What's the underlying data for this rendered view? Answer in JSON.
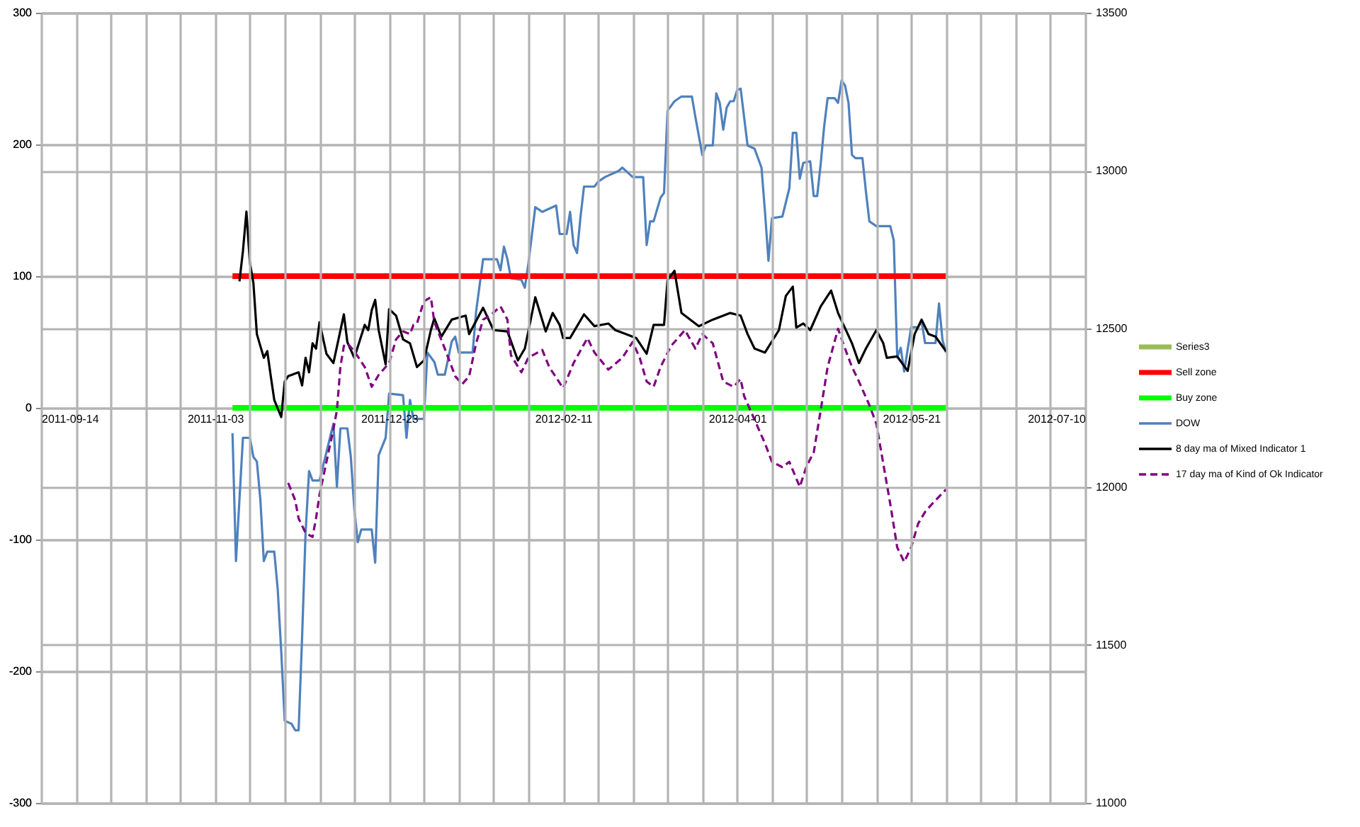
{
  "chart_data": {
    "type": "line",
    "xlim": [
      "2011-09-14",
      "2012-07-10"
    ],
    "xticks": [
      "2011-09-14",
      {
        "value": "2011-09-24",
        "label": null
      },
      {
        "value": "2011-10-04",
        "label": null
      },
      {
        "value": "2011-10-14",
        "label": null
      },
      {
        "value": "2011-10-24",
        "label": null
      },
      "2011-11-03",
      {
        "value": "2011-11-13",
        "label": null
      },
      {
        "value": "2011-11-23",
        "label": null
      },
      {
        "value": "2011-12-03",
        "label": null
      },
      {
        "value": "2011-12-13",
        "label": null
      },
      "2011-12-23",
      {
        "value": "2012-01-02",
        "label": null
      },
      {
        "value": "2012-01-12",
        "label": null
      },
      {
        "value": "2012-01-22",
        "label": null
      },
      {
        "value": "2012-02-01",
        "label": null
      },
      "2012-02-11",
      {
        "value": "2012-02-21",
        "label": null
      },
      {
        "value": "2012-03-02",
        "label": null
      },
      {
        "value": "2012-03-12",
        "label": null
      },
      {
        "value": "2012-03-22",
        "label": null
      },
      "2012-04-01",
      {
        "value": "2012-04-11",
        "label": null
      },
      {
        "value": "2012-04-21",
        "label": null
      },
      {
        "value": "2012-05-01",
        "label": null
      },
      {
        "value": "2012-05-11",
        "label": null
      },
      "2012-05-21",
      {
        "value": "2012-05-31",
        "label": null
      },
      {
        "value": "2012-06-10",
        "label": null
      },
      {
        "value": "2012-06-20",
        "label": null
      },
      {
        "value": "2012-06-30",
        "label": null
      },
      "2012-07-10"
    ],
    "ylim": [
      -300,
      300
    ],
    "yticks": [
      -300,
      -200,
      -100,
      0,
      100,
      200,
      300
    ],
    "y2lim": [
      11000,
      13500
    ],
    "y2ticks": [
      11000,
      11500,
      12000,
      12500,
      13000,
      13500
    ],
    "grid": true,
    "legend": "right",
    "series": [
      {
        "name": "Series3",
        "color": "#9bbb59"
      },
      {
        "name": "Sell zone",
        "color": "#ff0000",
        "x": [
          "2011-11-08",
          "2012-05-31"
        ],
        "values": [
          100,
          100
        ]
      },
      {
        "name": "Buy zone",
        "color": "#00ff00",
        "x": [
          "2011-11-08",
          "2012-05-31"
        ],
        "values": [
          0,
          0
        ]
      },
      {
        "name": "DOW",
        "color": "#4f81bd",
        "axis": "y2",
        "x": [
          "2011-11-08",
          "2011-11-09",
          "2011-11-10",
          "2011-11-11",
          "2011-11-13",
          "2011-11-14",
          "2011-11-15",
          "2011-11-16",
          "2011-11-17",
          "2011-11-18",
          "2011-11-20",
          "2011-11-21",
          "2011-11-22",
          "2011-11-23",
          "2011-11-25",
          "2011-11-26",
          "2011-11-27",
          "2011-11-28",
          "2011-11-29",
          "2011-11-30",
          "2011-12-01",
          "2011-12-03",
          "2011-12-05",
          "2011-12-07",
          "2011-12-08",
          "2011-12-09",
          "2011-12-11",
          "2011-12-12",
          "2011-12-13",
          "2011-12-14",
          "2011-12-15",
          "2011-12-18",
          "2011-12-19",
          "2011-12-20",
          "2011-12-22",
          "2011-12-23",
          "2011-12-27",
          "2011-12-28",
          "2011-12-29",
          "2011-12-30",
          "2012-01-02",
          "2012-01-03",
          "2012-01-05",
          "2012-01-06",
          "2012-01-08",
          "2012-01-10",
          "2012-01-11",
          "2012-01-12",
          "2012-01-16",
          "2012-01-17",
          "2012-01-19",
          "2012-01-23",
          "2012-01-24",
          "2012-01-25",
          "2012-01-26",
          "2012-01-27",
          "2012-01-30",
          "2012-01-31",
          "2012-02-01",
          "2012-02-03",
          "2012-02-05",
          "2012-02-09",
          "2012-02-10",
          "2012-02-12",
          "2012-02-13",
          "2012-02-14",
          "2012-02-15",
          "2012-02-16",
          "2012-02-17",
          "2012-02-20",
          "2012-02-21",
          "2012-02-23",
          "2012-02-27",
          "2012-02-28",
          "2012-03-01",
          "2012-03-02",
          "2012-03-05",
          "2012-03-06",
          "2012-03-07",
          "2012-03-08",
          "2012-03-10",
          "2012-03-11",
          "2012-03-12",
          "2012-03-14",
          "2012-03-16",
          "2012-03-19",
          "2012-03-20",
          "2012-03-22",
          "2012-03-23",
          "2012-03-25",
          "2012-03-26",
          "2012-03-27",
          "2012-03-28",
          "2012-03-29",
          "2012-03-30",
          "2012-03-31",
          "2012-04-01",
          "2012-04-02",
          "2012-04-04",
          "2012-04-06",
          "2012-04-08",
          "2012-04-09",
          "2012-04-10",
          "2012-04-11",
          "2012-04-14",
          "2012-04-16",
          "2012-04-17",
          "2012-04-18",
          "2012-04-19",
          "2012-04-20",
          "2012-04-22",
          "2012-04-23",
          "2012-04-24",
          "2012-04-25",
          "2012-04-26",
          "2012-04-27",
          "2012-04-29",
          "2012-04-30",
          "2012-05-01",
          "2012-05-02",
          "2012-05-03",
          "2012-05-04",
          "2012-05-05",
          "2012-05-07",
          "2012-05-08",
          "2012-05-09",
          "2012-05-11",
          "2012-05-15",
          "2012-05-16",
          "2012-05-17",
          "2012-05-18",
          "2012-05-19",
          "2012-05-21",
          "2012-05-23",
          "2012-05-24",
          "2012-05-25",
          "2012-05-28",
          "2012-05-29",
          "2012-05-30",
          "2012-05-31"
        ],
        "values": [
          12170,
          11765,
          11960,
          12155,
          12155,
          12095,
          12080,
          11960,
          11765,
          11795,
          11795,
          11675,
          11480,
          11260,
          11250,
          11230,
          11230,
          11525,
          11855,
          12050,
          12020,
          12020,
          12110,
          12200,
          12000,
          12185,
          12185,
          12095,
          11930,
          11825,
          11865,
          11865,
          11760,
          12100,
          12155,
          12295,
          12290,
          12155,
          12275,
          12215,
          12215,
          12425,
          12395,
          12355,
          12355,
          12460,
          12475,
          12425,
          12425,
          12555,
          12720,
          12720,
          12685,
          12760,
          12720,
          12660,
          12655,
          12630,
          12705,
          12885,
          12870,
          12890,
          12800,
          12800,
          12870,
          12765,
          12740,
          12855,
          12950,
          12950,
          12965,
          12980,
          13000,
          13010,
          12990,
          12980,
          12980,
          12765,
          12840,
          12840,
          12915,
          12930,
          13190,
          13220,
          13235,
          13235,
          13170,
          13050,
          13080,
          13080,
          13245,
          13215,
          13130,
          13200,
          13220,
          13220,
          13255,
          13260,
          13080,
          13070,
          13010,
          12870,
          12715,
          12850,
          12855,
          12945,
          13120,
          13120,
          12975,
          13025,
          13030,
          12920,
          12920,
          13020,
          13140,
          13230,
          13230,
          13215,
          13285,
          13270,
          13215,
          13050,
          13040,
          13040,
          12935,
          12840,
          12825,
          12825,
          12780,
          12410,
          12440,
          12365,
          12505,
          12505,
          12525,
          12455,
          12455,
          12580,
          12465,
          12425
        ]
      },
      {
        "name": "8 day ma of Mixed Indicator 1",
        "color": "#000000",
        "x": [
          "2011-11-10",
          "2011-11-11",
          "2011-11-12",
          "2011-11-13",
          "2011-11-14",
          "2011-11-15",
          "2011-11-16",
          "2011-11-17",
          "2011-11-18",
          "2011-11-19",
          "2011-11-20",
          "2011-11-22",
          "2011-11-23",
          "2011-11-24",
          "2011-11-27",
          "2011-11-28",
          "2011-11-29",
          "2011-11-30",
          "2011-12-01",
          "2011-12-02",
          "2011-12-03",
          "2011-12-05",
          "2011-12-07",
          "2011-12-10",
          "2011-12-11",
          "2011-12-13",
          "2011-12-16",
          "2011-12-17",
          "2011-12-18",
          "2011-12-19",
          "2011-12-20",
          "2011-12-22",
          "2011-12-23",
          "2011-12-25",
          "2011-12-27",
          "2011-12-29",
          "2011-12-31",
          "2012-01-02",
          "2012-01-04",
          "2012-01-05",
          "2012-01-07",
          "2012-01-10",
          "2012-01-14",
          "2012-01-15",
          "2012-01-19",
          "2012-01-22",
          "2012-01-26",
          "2012-01-29",
          "2012-01-31",
          "2012-02-03",
          "2012-02-06",
          "2012-02-08",
          "2012-02-10",
          "2012-02-11",
          "2012-02-13",
          "2012-02-17",
          "2012-02-20",
          "2012-02-24",
          "2012-02-26",
          "2012-02-29",
          "2012-03-03",
          "2012-03-06",
          "2012-03-08",
          "2012-03-11",
          "2012-03-12",
          "2012-03-14",
          "2012-03-16",
          "2012-03-18",
          "2012-03-21",
          "2012-03-25",
          "2012-03-30",
          "2012-04-02",
          "2012-04-04",
          "2012-04-06",
          "2012-04-09",
          "2012-04-13",
          "2012-04-15",
          "2012-04-17",
          "2012-04-18",
          "2012-04-20",
          "2012-04-22",
          "2012-04-25",
          "2012-04-28",
          "2012-04-30",
          "2012-05-04",
          "2012-05-06",
          "2012-05-08",
          "2012-05-11",
          "2012-05-13",
          "2012-05-14",
          "2012-05-17",
          "2012-05-20",
          "2012-05-22",
          "2012-05-24",
          "2012-05-26",
          "2012-05-28",
          "2012-05-31"
        ],
        "values": [
          96,
          119,
          149,
          110,
          95,
          56,
          47,
          38,
          43,
          24,
          6,
          -7,
          20,
          24,
          27,
          17,
          38,
          27,
          49,
          45,
          65,
          41,
          34,
          71,
          50,
          38,
          63,
          59,
          74,
          82,
          59,
          33,
          75,
          70,
          52,
          49,
          31,
          36,
          59,
          68,
          54,
          67,
          70,
          56,
          76,
          59,
          58,
          36,
          45,
          84,
          58,
          72,
          63,
          53,
          53,
          71,
          62,
          64,
          59,
          56,
          53,
          41,
          63,
          63,
          97,
          104,
          72,
          68,
          62,
          67,
          72,
          70,
          56,
          45,
          42,
          59,
          85,
          92,
          61,
          64,
          59,
          77,
          89,
          72,
          49,
          34,
          45,
          59,
          49,
          38,
          39,
          28,
          56,
          67,
          56,
          54,
          43
        ]
      },
      {
        "name": "17 day ma of Kind of Ok Indicator",
        "color": "#800080",
        "line_style": "dashed",
        "x": [
          "2011-11-24",
          "2011-11-26",
          "2011-11-27",
          "2011-11-29",
          "2011-12-01",
          "2011-12-02",
          "2011-12-03",
          "2011-12-05",
          "2011-12-07",
          "2011-12-08",
          "2011-12-09",
          "2011-12-10",
          "2011-12-11",
          "2011-12-13",
          "2011-12-16",
          "2011-12-18",
          "2011-12-20",
          "2011-12-23",
          "2011-12-25",
          "2011-12-27",
          "2011-12-29",
          "2011-12-30",
          "2011-12-31",
          "2012-01-02",
          "2012-01-04",
          "2012-01-05",
          "2012-01-08",
          "2012-01-11",
          "2012-01-13",
          "2012-01-15",
          "2012-01-17",
          "2012-01-19",
          "2012-01-21",
          "2012-01-24",
          "2012-01-26",
          "2012-01-27",
          "2012-01-30",
          "2012-02-01",
          "2012-02-05",
          "2012-02-07",
          "2012-02-11",
          "2012-02-14",
          "2012-02-18",
          "2012-02-20",
          "2012-02-24",
          "2012-02-28",
          "2012-03-02",
          "2012-03-04",
          "2012-03-06",
          "2012-03-08",
          "2012-03-10",
          "2012-03-13",
          "2012-03-17",
          "2012-03-20",
          "2012-03-22",
          "2012-03-25",
          "2012-03-28",
          "2012-03-31",
          "2012-04-02",
          "2012-04-03",
          "2012-04-06",
          "2012-04-09",
          "2012-04-11",
          "2012-04-14",
          "2012-04-16",
          "2012-04-19",
          "2012-04-21",
          "2012-04-23",
          "2012-04-25",
          "2012-04-27",
          "2012-04-30",
          "2012-05-02",
          "2012-05-04",
          "2012-05-06",
          "2012-05-09",
          "2012-05-11",
          "2012-05-15",
          "2012-05-17",
          "2012-05-19",
          "2012-05-21",
          "2012-05-23",
          "2012-05-25",
          "2012-05-27",
          "2012-05-31"
        ],
        "values": [
          -57,
          -70,
          -84,
          -95,
          -98,
          -84,
          -66,
          -41,
          -16,
          -2,
          31,
          47,
          49,
          43,
          31,
          16,
          25,
          34,
          52,
          58,
          56,
          63,
          64,
          81,
          84,
          65,
          45,
          24,
          18,
          24,
          49,
          67,
          70,
          77,
          67,
          40,
          27,
          38,
          44,
          31,
          15,
          34,
          53,
          42,
          29,
          38,
          50,
          38,
          20,
          16,
          31,
          47,
          59,
          45,
          56,
          49,
          20,
          16,
          22,
          9,
          -9,
          -27,
          -41,
          -45,
          -41,
          -60,
          -44,
          -34,
          -2,
          31,
          60,
          45,
          31,
          20,
          2,
          -12,
          -73,
          -106,
          -117,
          -106,
          -88,
          -79,
          -73,
          -62
        ]
      }
    ]
  }
}
